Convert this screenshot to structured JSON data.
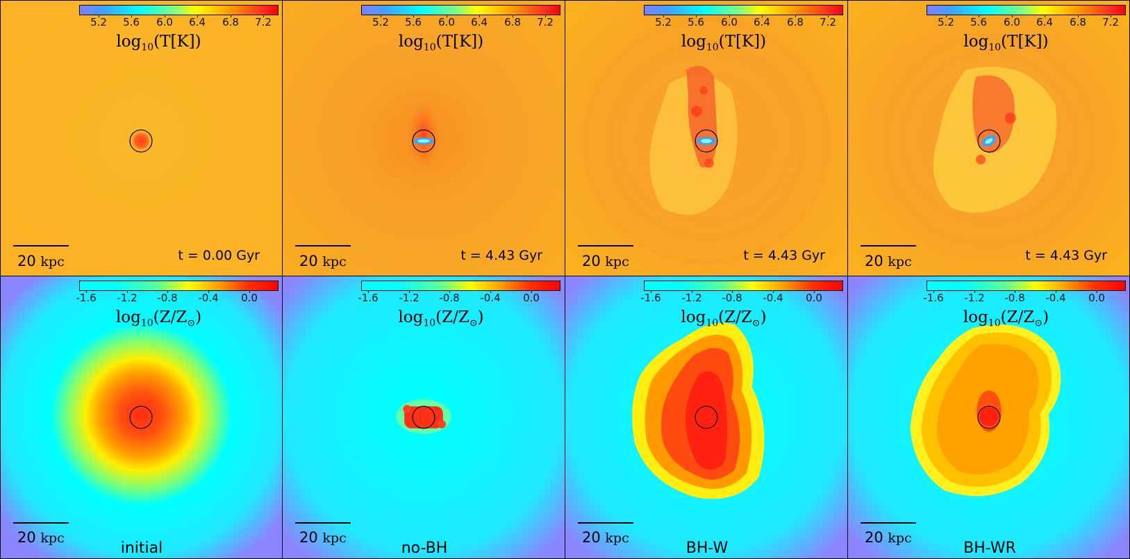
{
  "scale_bar": {
    "value": "20",
    "unit": "kpc"
  },
  "colors": {
    "temp_bg": "#fbb21f",
    "temp_bg2": "#f9a52a",
    "met_center": "#ff2b17",
    "met_mid": "#ffee00",
    "met_outer": "#00ffff",
    "met_edge": "#8a86ff",
    "circle": "#000000"
  },
  "colorbars": {
    "temperature": {
      "label_func": "log",
      "label_sub": "10",
      "label_arg": "(T[K])",
      "ticks": [
        "5.2",
        "5.6",
        "6.0",
        "6.4",
        "6.8",
        "7.2"
      ]
    },
    "metallicity": {
      "label_func": "log",
      "label_sub": "10",
      "label_arg": "(Z/Z",
      "label_sun": "⊙",
      "label_close": ")",
      "ticks": [
        "-1.6",
        "-1.2",
        "-0.8",
        "-0.4",
        "0.0"
      ]
    }
  },
  "panels": [
    {
      "run": "initial",
      "time": "t = 0.00 Gyr"
    },
    {
      "run": "no-BH",
      "time": "t = 4.43 Gyr"
    },
    {
      "run": "BH-W",
      "time": "t = 4.43 Gyr"
    },
    {
      "run": "BH-WR",
      "time": "t = 4.43 Gyr"
    }
  ]
}
